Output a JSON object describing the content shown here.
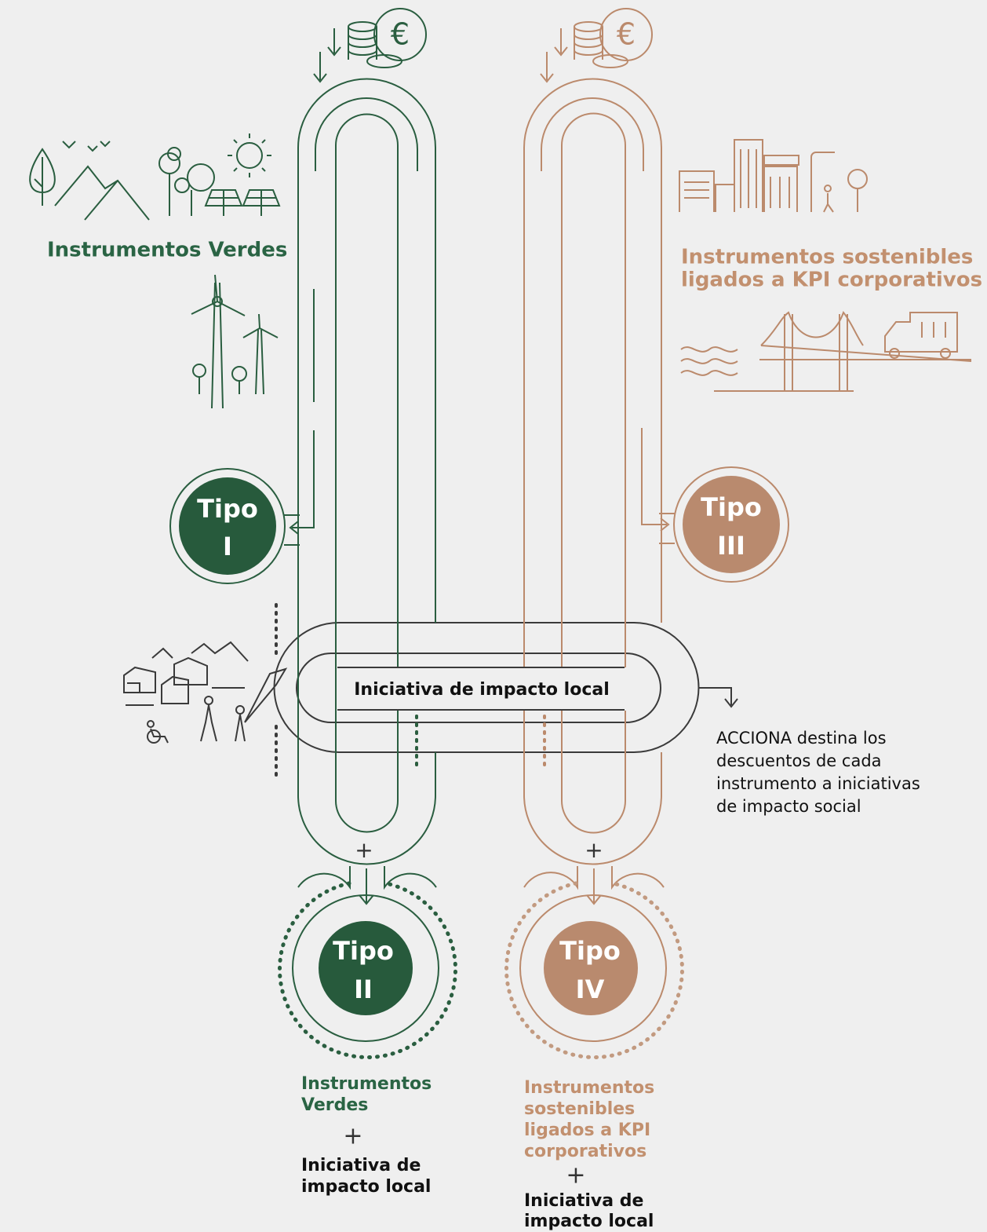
{
  "coins": [
    "€",
    "€"
  ],
  "green_label": [
    "Instrumentos Verdes"
  ],
  "brown_label": [
    "Instrumentos sostenibles",
    "ligados a KPI corporativos"
  ],
  "types": [
    {
      "lines": [
        "Tipo",
        "I"
      ]
    },
    {
      "lines": [
        "Tipo",
        "III"
      ]
    },
    {
      "lines": [
        "Tipo",
        "II"
      ]
    },
    {
      "lines": [
        "Tipo",
        "IV"
      ]
    }
  ],
  "center_label": "Iniciativa de impacto local",
  "tube_plus": [
    "+",
    "+"
  ],
  "note": [
    "ACCIONA destina los",
    "descuentos de cada",
    "instrumento a iniciativas",
    "de impacto social"
  ],
  "result_green": {
    "instrument": [
      "Instrumentos",
      "Verdes"
    ],
    "plus": "+",
    "initiative": [
      "Iniciativa de",
      "impacto local"
    ]
  },
  "result_brown": {
    "instrument": [
      "Instrumentos",
      "sostenibles",
      "ligados a KPI",
      "corporativos"
    ],
    "plus": "+",
    "initiative": [
      "Iniciativa de",
      "impacto local"
    ]
  }
}
